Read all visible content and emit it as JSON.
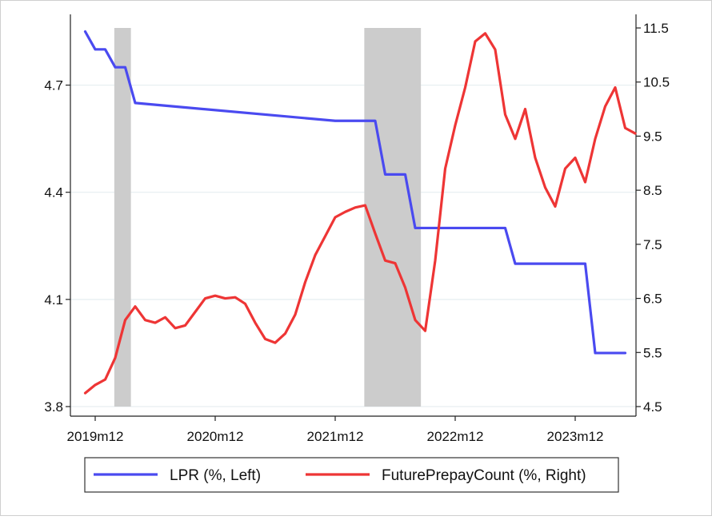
{
  "chart_data": {
    "type": "line",
    "title": "",
    "xlabel": "",
    "ylabel_left": "",
    "ylabel_right": "",
    "x_ticks": [
      "2019m12",
      "2020m12",
      "2021m12",
      "2022m12",
      "2023m12"
    ],
    "x_start": "2019m11",
    "x_end": "2024m5",
    "y_left": {
      "ticks": [
        "3.8",
        "4.1",
        "4.4",
        "4.7"
      ],
      "ylim": [
        3.8,
        4.86
      ]
    },
    "y_right": {
      "ticks": [
        "4.5",
        "5.5",
        "6.5",
        "7.5",
        "8.5",
        "9.5",
        "10.5",
        "11.5"
      ],
      "ylim": [
        4.5,
        11.5
      ]
    },
    "grid": "horizontal",
    "shaded_periods": [
      {
        "start": "2020m2",
        "end": "2020m3"
      },
      {
        "start": "2022m3",
        "end": "2022m8"
      }
    ],
    "legend": {
      "position": "bottom"
    },
    "series": [
      {
        "name": "LPR (%, Left)",
        "axis": "left",
        "color": "#4a4af0",
        "step": true,
        "points": [
          [
            "2019m11",
            4.85
          ],
          [
            "2019m12",
            4.8
          ],
          [
            "2020m1",
            4.8
          ],
          [
            "2020m2",
            4.75
          ],
          [
            "2020m3",
            4.75
          ],
          [
            "2020m4",
            4.65
          ],
          [
            "2021m12",
            4.6
          ],
          [
            "2022m1",
            4.6
          ],
          [
            "2022m4",
            4.6
          ],
          [
            "2022m5",
            4.45
          ],
          [
            "2022m7",
            4.45
          ],
          [
            "2022m8",
            4.3
          ],
          [
            "2023m5",
            4.3
          ],
          [
            "2023m6",
            4.2
          ],
          [
            "2024m1",
            4.2
          ],
          [
            "2024m2",
            3.95
          ],
          [
            "2024m5",
            3.95
          ]
        ]
      },
      {
        "name": "FuturePrepayCount (%, Right)",
        "axis": "right",
        "color": "#ee3535",
        "step": false,
        "points": [
          [
            "2019m11",
            4.75
          ],
          [
            "2019m12",
            4.9
          ],
          [
            "2020m1",
            5.0
          ],
          [
            "2020m2",
            5.4
          ],
          [
            "2020m3",
            6.1
          ],
          [
            "2020m4",
            6.35
          ],
          [
            "2020m5",
            6.1
          ],
          [
            "2020m6",
            6.05
          ],
          [
            "2020m7",
            6.15
          ],
          [
            "2020m8",
            5.95
          ],
          [
            "2020m9",
            6.0
          ],
          [
            "2020m10",
            6.25
          ],
          [
            "2020m11",
            6.5
          ],
          [
            "2020m12",
            6.55
          ],
          [
            "2021m1",
            6.5
          ],
          [
            "2021m2",
            6.52
          ],
          [
            "2021m3",
            6.4
          ],
          [
            "2021m4",
            6.05
          ],
          [
            "2021m5",
            5.75
          ],
          [
            "2021m6",
            5.68
          ],
          [
            "2021m7",
            5.85
          ],
          [
            "2021m8",
            6.2
          ],
          [
            "2021m9",
            6.8
          ],
          [
            "2021m10",
            7.3
          ],
          [
            "2021m11",
            7.65
          ],
          [
            "2021m12",
            8.0
          ],
          [
            "2022m1",
            8.1
          ],
          [
            "2022m2",
            8.18
          ],
          [
            "2022m3",
            8.22
          ],
          [
            "2022m4",
            7.7
          ],
          [
            "2022m5",
            7.2
          ],
          [
            "2022m6",
            7.15
          ],
          [
            "2022m7",
            6.7
          ],
          [
            "2022m8",
            6.1
          ],
          [
            "2022m9",
            5.9
          ],
          [
            "2022m10",
            7.2
          ],
          [
            "2022m11",
            8.9
          ],
          [
            "2022m12",
            9.7
          ],
          [
            "2023m1",
            10.4
          ],
          [
            "2023m2",
            11.25
          ],
          [
            "2023m3",
            11.4
          ],
          [
            "2023m4",
            11.1
          ],
          [
            "2023m5",
            9.9
          ],
          [
            "2023m6",
            9.45
          ],
          [
            "2023m7",
            10.0
          ],
          [
            "2023m8",
            9.1
          ],
          [
            "2023m9",
            8.55
          ],
          [
            "2023m10",
            8.2
          ],
          [
            "2023m11",
            8.9
          ],
          [
            "2023m12",
            9.1
          ],
          [
            "2024m1",
            8.65
          ],
          [
            "2024m2",
            9.45
          ],
          [
            "2024m3",
            10.05
          ],
          [
            "2024m4",
            10.4
          ],
          [
            "2024m5",
            9.65
          ],
          [
            "2024m6",
            9.55
          ]
        ]
      }
    ]
  }
}
